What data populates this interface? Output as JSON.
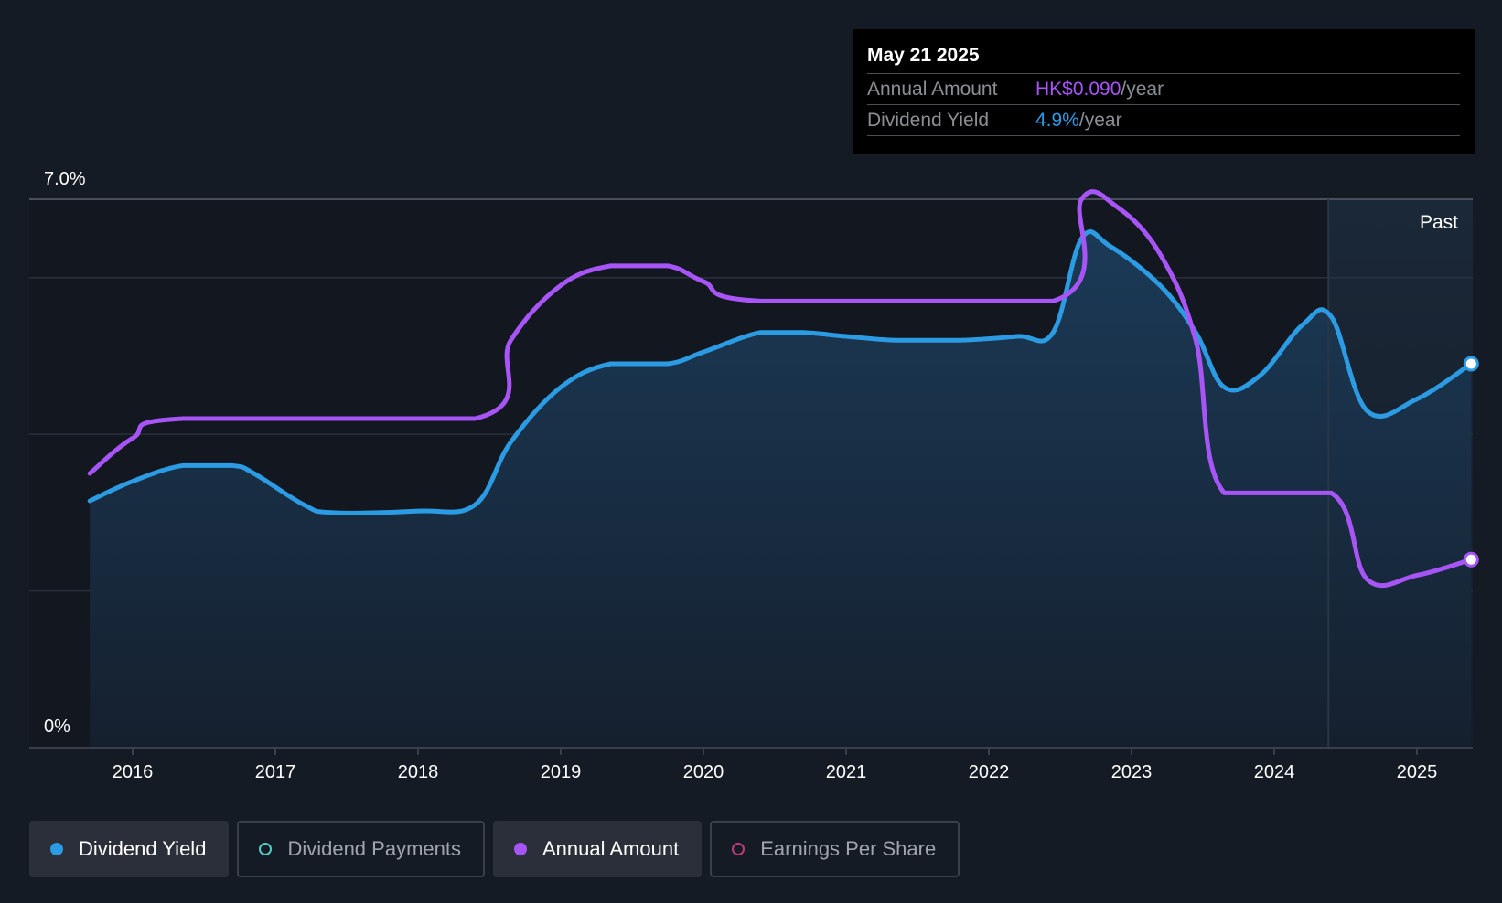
{
  "tooltip": {
    "date": "May 21 2025",
    "rows": [
      {
        "label": "Annual Amount",
        "value": "HK$0.090",
        "unit": "/year"
      },
      {
        "label": "Dividend Yield",
        "value": "4.9%",
        "unit": "/year"
      }
    ]
  },
  "colors": {
    "dividend_yield": "#2b9be4",
    "annual_amount": "#a855f7",
    "dividend_payments": "#4fd1c5",
    "earnings_per_share": "#c0397a",
    "background": "#151b25"
  },
  "chart_data": {
    "type": "line",
    "y_labels": {
      "top": "7.0%",
      "bottom": "0%"
    },
    "ylim": [
      0,
      7.0
    ],
    "x_ticks": [
      "2016",
      "2017",
      "2018",
      "2019",
      "2020",
      "2021",
      "2022",
      "2023",
      "2024",
      "2025"
    ],
    "past_label": "Past",
    "series": [
      {
        "name": "Dividend Yield",
        "points": [
          [
            2015.7,
            3.15
          ],
          [
            2016.0,
            3.4
          ],
          [
            2016.35,
            3.6
          ],
          [
            2016.7,
            3.6
          ],
          [
            2016.85,
            3.5
          ],
          [
            2017.2,
            3.1
          ],
          [
            2017.4,
            3.0
          ],
          [
            2018.0,
            3.02
          ],
          [
            2018.4,
            3.1
          ],
          [
            2018.65,
            3.9
          ],
          [
            2019.0,
            4.6
          ],
          [
            2019.35,
            4.9
          ],
          [
            2019.75,
            4.9
          ],
          [
            2020.0,
            5.05
          ],
          [
            2020.4,
            5.3
          ],
          [
            2020.7,
            5.3
          ],
          [
            2021.0,
            5.25
          ],
          [
            2021.35,
            5.2
          ],
          [
            2021.8,
            5.2
          ],
          [
            2022.2,
            5.25
          ],
          [
            2022.45,
            5.3
          ],
          [
            2022.65,
            6.5
          ],
          [
            2022.85,
            6.4
          ],
          [
            2023.2,
            5.9
          ],
          [
            2023.45,
            5.3
          ],
          [
            2023.65,
            4.6
          ],
          [
            2023.9,
            4.75
          ],
          [
            2024.2,
            5.4
          ],
          [
            2024.4,
            5.5
          ],
          [
            2024.65,
            4.3
          ],
          [
            2025.0,
            4.45
          ],
          [
            2025.38,
            4.9
          ]
        ]
      },
      {
        "name": "Annual Amount",
        "points": [
          [
            2015.7,
            3.5
          ],
          [
            2016.0,
            3.95
          ],
          [
            2016.35,
            4.2
          ],
          [
            2018.4,
            4.2
          ],
          [
            2018.65,
            5.2
          ],
          [
            2019.0,
            5.9
          ],
          [
            2019.35,
            6.15
          ],
          [
            2019.75,
            6.15
          ],
          [
            2020.0,
            5.95
          ],
          [
            2020.4,
            5.7
          ],
          [
            2022.45,
            5.7
          ],
          [
            2022.65,
            7.0
          ],
          [
            2022.9,
            6.9
          ],
          [
            2023.2,
            6.3
          ],
          [
            2023.45,
            5.2
          ],
          [
            2023.65,
            3.25
          ],
          [
            2024.4,
            3.25
          ],
          [
            2024.65,
            2.15
          ],
          [
            2025.0,
            2.2
          ],
          [
            2025.38,
            2.4
          ]
        ]
      }
    ],
    "past_region_start": 2024.38,
    "x_range": [
      2015.0,
      2025.38
    ]
  },
  "legend": [
    {
      "label": "Dividend Yield",
      "active": true,
      "color_key": "dividend_yield"
    },
    {
      "label": "Dividend Payments",
      "active": false,
      "color_key": "dividend_payments"
    },
    {
      "label": "Annual Amount",
      "active": true,
      "color_key": "annual_amount"
    },
    {
      "label": "Earnings Per Share",
      "active": false,
      "color_key": "earnings_per_share"
    }
  ]
}
